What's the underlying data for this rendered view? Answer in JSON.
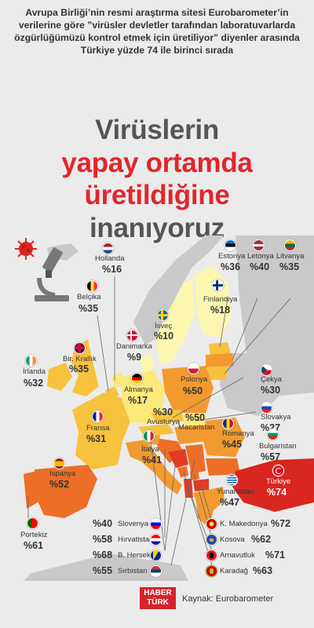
{
  "intro_text": "Avrupa Birliği’nin resmi araştırma sitesi Eurobarometer’in verilerine göre ”virüsler devletler tarafından laboratuvarlarda özgürlüğümüzü kontrol etmek için üretiliyor” diyenler arasında Türkiye yüzde 74 ile birinci sırada",
  "headline": {
    "line1": "Virüslerin",
    "line2": "yapay ortamda",
    "line3": "üretildiğine",
    "line4": "inanıyoruz"
  },
  "countries": [
    {
      "key": "hollanda",
      "name": "Hollanda",
      "value": "%16"
    },
    {
      "key": "belcika",
      "name": "Belçika",
      "value": "%35"
    },
    {
      "key": "estonya",
      "name": "Estonya",
      "value": "%36"
    },
    {
      "key": "letonya",
      "name": "Letonya",
      "value": "%40"
    },
    {
      "key": "litvanya",
      "name": "Litvanya",
      "value": "%35"
    },
    {
      "key": "finlandiya",
      "name": "Finlandiya",
      "value": "%18"
    },
    {
      "key": "isvec",
      "name": "İsveç",
      "value": "%10"
    },
    {
      "key": "danimarka",
      "name": "Danimarka",
      "value": "%9"
    },
    {
      "key": "irlanda",
      "name": "İrlanda",
      "value": "%32"
    },
    {
      "key": "birkrallik",
      "name": "Bir. Krallık",
      "value": "%35"
    },
    {
      "key": "almanya",
      "name": "Almanya",
      "value": "%17"
    },
    {
      "key": "polonya",
      "name": "Polonya",
      "value": "%50"
    },
    {
      "key": "cekya",
      "name": "Çekya",
      "value": "%30"
    },
    {
      "key": "slovakya",
      "name": "Slovakya",
      "value": "%27"
    },
    {
      "key": "fransa",
      "name": "Fransa",
      "value": "%31"
    },
    {
      "key": "avusturya",
      "name": "Avusturya",
      "value": "%30"
    },
    {
      "key": "macaristan",
      "name": "Macaristan",
      "value": "%50"
    },
    {
      "key": "romanya",
      "name": "Romanya",
      "value": "%45"
    },
    {
      "key": "bulgaristan",
      "name": "Bulgaristan",
      "value": "%57"
    },
    {
      "key": "italya",
      "name": "İtalya",
      "value": "%41"
    },
    {
      "key": "ispanya",
      "name": "İspanya",
      "value": "%52"
    },
    {
      "key": "turkiye",
      "name": "Türkiye",
      "value": "%74"
    },
    {
      "key": "yunanistan",
      "name": "Yunanistan",
      "value": "%47"
    },
    {
      "key": "portekiz",
      "name": "Portekiz",
      "value": "%61"
    },
    {
      "key": "slovenya",
      "name": "Slovenya",
      "value": "%40"
    },
    {
      "key": "hirvatistan",
      "name": "Hırvatistan",
      "value": "%58"
    },
    {
      "key": "bhersek",
      "name": "B. Hersek",
      "value": "%68"
    },
    {
      "key": "sirbistan",
      "name": "Sırbistan",
      "value": "%55"
    },
    {
      "key": "kmakedonya",
      "name": "K. Makedonya",
      "value": "%72"
    },
    {
      "key": "kosova",
      "name": "Kosova",
      "value": "%62"
    },
    {
      "key": "arnavutluk",
      "name": "Arnavutluk",
      "value": "%71"
    },
    {
      "key": "karadag",
      "name": "Karadağ",
      "value": "%63"
    }
  ],
  "map_colors": {
    "lowest": "#fbf7b0",
    "low": "#fbe97a",
    "mid": "#f7c23e",
    "high": "#f29a30",
    "higher": "#ec6e27",
    "highest": "#e33b25",
    "extreme": "#d9261f",
    "nondata": "#c9c9c9"
  },
  "icons": [
    "virus-icon",
    "microscope-icon"
  ],
  "footer": {
    "logo_line1": "HABER",
    "logo_line2": "TÜRK",
    "source": "Kaynak: Eurobarometer"
  }
}
